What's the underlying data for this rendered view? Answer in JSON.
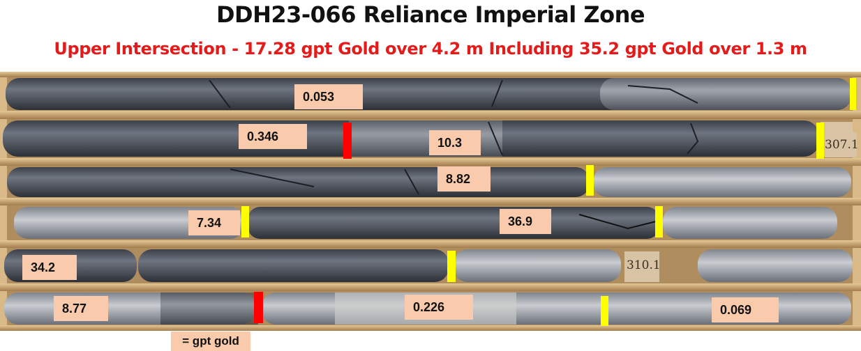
{
  "title": "DDH23-066 Reliance Imperial Zone",
  "subtitle": "Upper Intersection - 17.28 gpt Gold over 4.2 m Including 35.2 gpt Gold over 1.3 m",
  "legend": "= gpt gold",
  "depth_tags": [
    "307.1",
    "310.1"
  ],
  "colors": {
    "title": "#111111",
    "subtitle": "#e31b1b",
    "label_bg": "#f9cbac",
    "marker_red": "#ff0000",
    "marker_yellow": "#ffff00"
  },
  "assays": [
    "0.053",
    "0.346",
    "10.3",
    "8.82",
    "7.34",
    "36.9",
    "34.2",
    "8.77",
    "0.226",
    "0.069"
  ]
}
